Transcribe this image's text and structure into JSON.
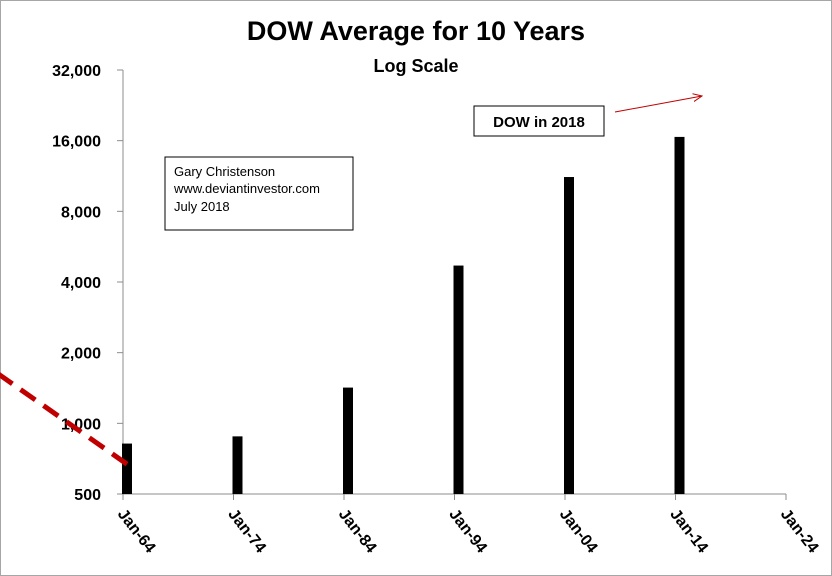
{
  "chart_data": {
    "type": "bar",
    "title": "DOW Average for 10 Years",
    "subtitle": "Log Scale",
    "y_scale": "log2",
    "ylim": [
      500,
      32000
    ],
    "y_ticks": [
      "500",
      "1,000",
      "2,000",
      "4,000",
      "8,000",
      "16,000",
      "32,000"
    ],
    "x_ticks": [
      "Jan-64",
      "Jan-74",
      "Jan-84",
      "Jan-94",
      "Jan-04",
      "Jan-14",
      "Jan-24"
    ],
    "categories": [
      "Jan-64",
      "Jan-74",
      "Jan-84",
      "Jan-94",
      "Jan-04",
      "Jan-14"
    ],
    "values": [
      820,
      880,
      1420,
      4700,
      11200,
      16600
    ],
    "bar_color": "#000000",
    "trend_arrow": {
      "color": "#c00000",
      "from": {
        "x": "Jan-64",
        "y": 670
      },
      "to": {
        "x": "Jan-17",
        "y": 24500
      }
    },
    "marker": {
      "label": "DOW in 2018",
      "x": "Jan-18",
      "y": 26000,
      "fill": "#ff0000",
      "stroke": "#3b5ea8"
    },
    "annotation_box": [
      "Gary Christenson",
      "www.deviantinvestor.com",
      "July 2018"
    ]
  }
}
